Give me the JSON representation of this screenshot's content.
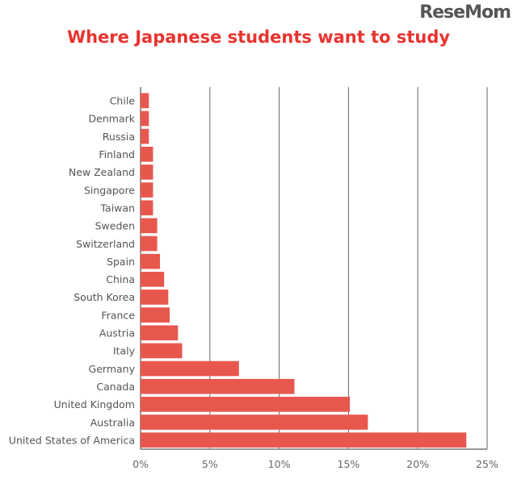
{
  "chart_data": {
    "type": "bar",
    "orientation": "horizontal",
    "title": "Where Japanese students want to study",
    "xlabel": "",
    "ylabel": "",
    "xlim": [
      0,
      25
    ],
    "xticks": [
      0,
      5,
      10,
      15,
      20,
      25
    ],
    "xtick_labels": [
      "0%",
      "5%",
      "10%",
      "15%",
      "20%",
      "25%"
    ],
    "grid": "vertical",
    "bar_color": "#e8574e",
    "title_color": "#e8332e",
    "categories": [
      "Chile",
      "Denmark",
      "Russia",
      "Finland",
      "New Zealand",
      "Singapore",
      "Taiwan",
      "Sweden",
      "Switzerland",
      "Spain",
      "China",
      "South Korea",
      "France",
      "Austria",
      "Italy",
      "Germany",
      "Canada",
      "United Kingdom",
      "Australia",
      "United States of America"
    ],
    "values": [
      0.6,
      0.6,
      0.6,
      0.9,
      0.9,
      0.9,
      0.9,
      1.2,
      1.2,
      1.4,
      1.7,
      2.0,
      2.1,
      2.7,
      3.0,
      7.1,
      11.1,
      15.1,
      16.4,
      23.5
    ]
  },
  "watermark": "ReseMom"
}
